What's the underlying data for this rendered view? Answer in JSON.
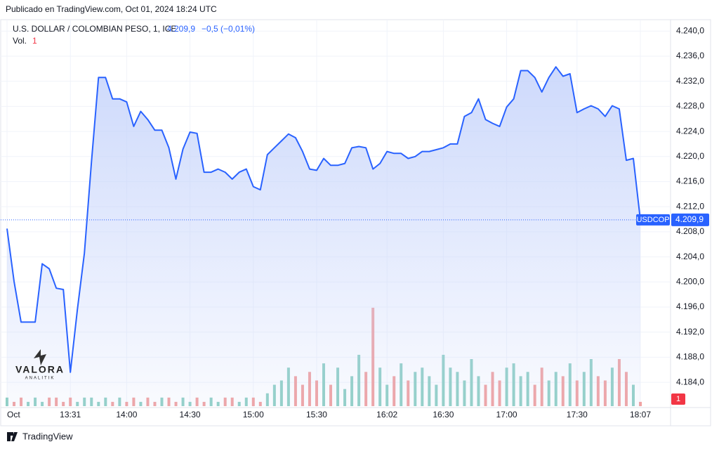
{
  "published": "Publicado en TradingView.com, Oct 01, 2024 18:24 UTC",
  "watermark": {
    "name": "VALORA",
    "sub": "ANALITIK"
  },
  "footer": "TradingView",
  "chart_data": {
    "type": "line",
    "title": "U.S. DOLLAR / COLOMBIAN PESO, 1, ICE",
    "symbol": "USDCOP",
    "last": {
      "value": 4209.9,
      "label": "4.209,9"
    },
    "change": "−0,5 (−0,01%)",
    "color": "#2962ff",
    "fill_color": "#c5d3fb",
    "categories": [
      "Oct",
      null,
      null,
      null,
      null,
      null,
      null,
      null,
      null,
      "13:31",
      null,
      null,
      null,
      null,
      null,
      null,
      null,
      "14:00",
      null,
      null,
      null,
      null,
      null,
      null,
      null,
      null,
      "14:30",
      null,
      null,
      null,
      null,
      null,
      null,
      null,
      null,
      "15:00",
      null,
      null,
      null,
      null,
      null,
      null,
      null,
      null,
      "15:30",
      null,
      null,
      null,
      null,
      null,
      null,
      null,
      null,
      null,
      "16:02",
      null,
      null,
      null,
      null,
      null,
      null,
      null,
      "16:30",
      null,
      null,
      null,
      null,
      null,
      null,
      null,
      null,
      "17:00",
      null,
      null,
      null,
      null,
      null,
      null,
      null,
      null,
      null,
      "17:30",
      null,
      null,
      null,
      null,
      null,
      null,
      null,
      null,
      "18:07"
    ],
    "values": [
      4208.5,
      4200.1,
      4193.6,
      4193.6,
      4193.6,
      4202.9,
      4202.1,
      4199.0,
      4198.8,
      4185.6,
      4195.6,
      4204.6,
      4219.2,
      4232.6,
      4232.6,
      4229.2,
      4229.2,
      4228.7,
      4224.8,
      4227.2,
      4225.9,
      4224.2,
      4224.2,
      4221.4,
      4216.4,
      4221.2,
      4223.9,
      4223.7,
      4217.5,
      4217.5,
      4218.0,
      4217.5,
      4216.4,
      4217.5,
      4218.0,
      4215.2,
      4214.7,
      4220.3,
      4221.4,
      4222.5,
      4223.6,
      4223.0,
      4220.8,
      4218.0,
      4217.8,
      4219.7,
      4218.6,
      4218.6,
      4218.9,
      4221.4,
      4221.6,
      4221.4,
      4218.0,
      4218.9,
      4220.8,
      4220.5,
      4220.5,
      4219.7,
      4220.0,
      4220.8,
      4220.8,
      4221.1,
      4221.4,
      4222.0,
      4222.0,
      4226.4,
      4227.0,
      4229.2,
      4225.9,
      4225.3,
      4224.8,
      4227.9,
      4229.2,
      4233.7,
      4233.7,
      4232.6,
      4230.3,
      4232.6,
      4234.3,
      4232.8,
      4233.2,
      4227.0,
      4227.6,
      4228.1,
      4227.6,
      4226.4,
      4228.1,
      4227.6,
      4219.4,
      4219.7,
      4209.9
    ],
    "ylim": [
      4180.2,
      4241.6
    ],
    "yticks": [
      {
        "value": 4184,
        "label": "4.184,0"
      },
      {
        "value": 4188,
        "label": "4.188,0"
      },
      {
        "value": 4192,
        "label": "4.192,0"
      },
      {
        "value": 4196,
        "label": "4.196,0"
      },
      {
        "value": 4200,
        "label": "4.200,0"
      },
      {
        "value": 4204,
        "label": "4.204,0"
      },
      {
        "value": 4208,
        "label": "4.208,0"
      },
      {
        "value": 4212,
        "label": "4.212,0"
      },
      {
        "value": 4216,
        "label": "4.216,0"
      },
      {
        "value": 4220,
        "label": "4.220,0"
      },
      {
        "value": 4224,
        "label": "4.224,0"
      },
      {
        "value": 4228,
        "label": "4.228,0"
      },
      {
        "value": 4232,
        "label": "4.232,0"
      },
      {
        "value": 4236,
        "label": "4.236,0"
      },
      {
        "value": 4240,
        "label": "4.240,0"
      }
    ],
    "grid": true,
    "volume": {
      "name": "Vol.",
      "axis": "y2",
      "up_color": "#8fcfc4",
      "down_color": "#f1a1a0",
      "values": [
        2,
        1,
        2,
        1,
        2,
        1,
        2,
        2,
        1,
        2,
        1,
        2,
        2,
        1,
        2,
        1,
        2,
        1,
        2,
        1,
        2,
        1,
        2,
        2,
        1,
        2,
        1,
        2,
        1,
        2,
        1,
        2,
        2,
        1,
        2,
        2,
        1,
        3,
        5,
        6,
        9,
        7,
        5,
        8,
        6,
        10,
        5,
        9,
        4,
        7,
        12,
        8,
        23,
        9,
        5,
        7,
        10,
        6,
        8,
        9,
        7,
        5,
        12,
        9,
        8,
        6,
        11,
        7,
        5,
        8,
        6,
        9,
        10,
        7,
        8,
        5,
        9,
        6,
        8,
        7,
        10,
        6,
        8,
        11,
        7,
        6,
        9,
        11,
        8,
        5,
        1
      ]
    },
    "y2lim": [
      0,
      90
    ]
  }
}
